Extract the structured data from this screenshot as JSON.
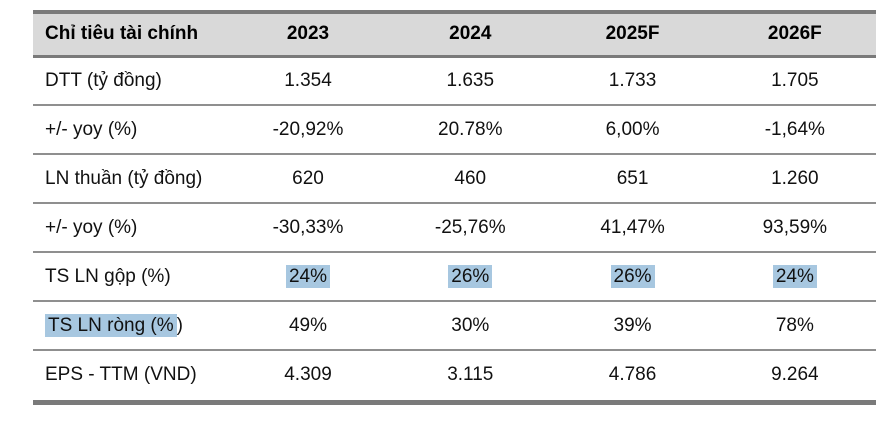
{
  "table": {
    "title_column": "Chỉ tiêu tài chính",
    "columns": [
      "Chỉ tiêu tài chính",
      "2023",
      "2024",
      "2025F",
      "2026F"
    ],
    "rows": [
      {
        "label": "DTT (tỷ đồng)",
        "values": [
          "1.354",
          "1.635",
          "1.733",
          "1.705"
        ]
      },
      {
        "label": "+/- yoy (%)",
        "values": [
          "-20,92%",
          "20.78%",
          "6,00%",
          "-1,64%"
        ]
      },
      {
        "label": "LN thuần (tỷ đồng)",
        "values": [
          "620",
          "460",
          "651",
          "1.260"
        ]
      },
      {
        "label": "+/- yoy (%)",
        "values": [
          "-30,33%",
          "-25,76%",
          "41,47%",
          "93,59%"
        ]
      },
      {
        "label": "TS LN gộp (%)",
        "values": [
          "24%",
          "26%",
          "26%",
          "24%"
        ],
        "values_highlighted": true
      },
      {
        "label": "TS LN ròng (%)",
        "label_hl": "TS LN ròng (%",
        "label_rest": ")",
        "label_highlighted": true,
        "values": [
          "49%",
          "30%",
          "39%",
          "78%"
        ]
      },
      {
        "label": "EPS - TTM (VND)",
        "values": [
          "4.309",
          "3.115",
          "4.786",
          "9.264"
        ]
      }
    ],
    "colors": {
      "highlight": "#a7c7e0",
      "header_bg": "#d9d9d9",
      "border_dark": "#7a7a7a",
      "border_row": "#8f8f8f"
    }
  }
}
